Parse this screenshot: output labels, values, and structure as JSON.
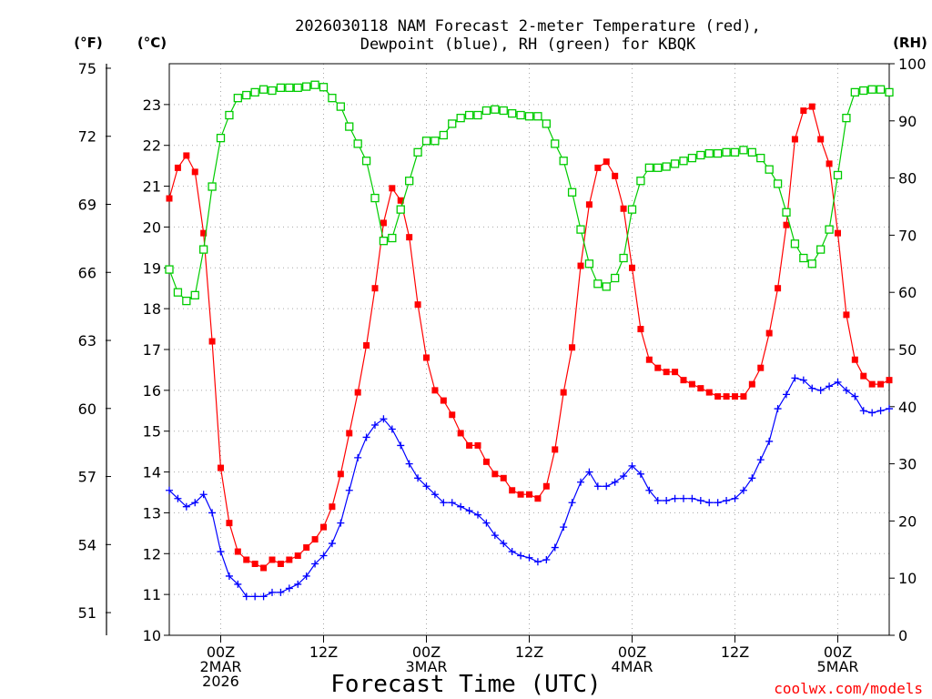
{
  "chart_data": {
    "type": "line",
    "title_line1": "2026030118 NAM Forecast 2-meter Temperature (red),",
    "title_line2": "Dewpoint (blue), RH (green) for KBQK",
    "xlabel": "Forecast Time (UTC)",
    "credit": "coolwx.com/models",
    "units": {
      "fahrenheit": "(°F)",
      "celsius": "(°C)",
      "rh": "(RH)"
    },
    "x_range_hours": [
      18,
      102
    ],
    "celsius_axis": {
      "range": [
        10,
        24
      ],
      "ticks": [
        10,
        11,
        12,
        13,
        14,
        15,
        16,
        17,
        18,
        19,
        20,
        21,
        22,
        23
      ]
    },
    "fahrenheit_axis": {
      "range": [
        50,
        75.2
      ],
      "ticks": [
        51,
        54,
        57,
        60,
        63,
        66,
        69,
        72,
        75
      ]
    },
    "rh_axis": {
      "range": [
        0,
        100
      ],
      "ticks": [
        0,
        10,
        20,
        30,
        40,
        50,
        60,
        70,
        80,
        90,
        100
      ]
    },
    "x_ticks": [
      {
        "hour": 24,
        "lines": [
          "00Z",
          "2MAR",
          "2026"
        ]
      },
      {
        "hour": 36,
        "lines": [
          "12Z"
        ]
      },
      {
        "hour": 48,
        "lines": [
          "00Z",
          "3MAR"
        ]
      },
      {
        "hour": 60,
        "lines": [
          "12Z"
        ]
      },
      {
        "hour": 72,
        "lines": [
          "00Z",
          "4MAR"
        ]
      },
      {
        "hour": 84,
        "lines": [
          "12Z"
        ]
      },
      {
        "hour": 96,
        "lines": [
          "00Z",
          "5MAR"
        ]
      }
    ],
    "grid": true,
    "colors": {
      "temperature": "#ff0000",
      "dewpoint": "#0000ff",
      "rh": "#00cc00",
      "credit": "#ff0000"
    },
    "series": [
      {
        "key": "temperature",
        "axis": "celsius",
        "marker": "filled-square",
        "x": [
          18,
          19,
          20,
          21,
          22,
          23,
          24,
          25,
          26,
          27,
          28,
          29,
          30,
          31,
          32,
          33,
          34,
          35,
          36,
          37,
          38,
          39,
          40,
          41,
          42,
          43,
          44,
          45,
          46,
          47,
          48,
          49,
          50,
          51,
          52,
          53,
          54,
          55,
          56,
          57,
          58,
          59,
          60,
          61,
          62,
          63,
          64,
          65,
          66,
          67,
          68,
          69,
          70,
          71,
          72,
          73,
          74,
          75,
          76,
          77,
          78,
          79,
          80,
          81,
          82,
          83,
          84,
          85,
          86,
          87,
          88,
          89,
          90,
          91,
          92,
          93,
          94,
          95,
          96,
          97,
          98,
          99,
          100,
          101,
          102
        ],
        "values": [
          20.7,
          21.45,
          21.75,
          21.35,
          19.85,
          17.2,
          14.1,
          12.75,
          12.05,
          11.85,
          11.75,
          11.65,
          11.85,
          11.75,
          11.85,
          11.95,
          12.15,
          12.35,
          12.65,
          13.15,
          13.95,
          14.95,
          15.95,
          17.1,
          18.5,
          20.1,
          20.95,
          20.65,
          19.75,
          18.1,
          16.8,
          16.0,
          15.75,
          15.4,
          14.95,
          14.65,
          14.65,
          14.25,
          13.95,
          13.85,
          13.55,
          13.45,
          13.45,
          13.35,
          13.65,
          14.55,
          15.95,
          17.05,
          19.05,
          20.55,
          21.45,
          21.6,
          21.25,
          20.45,
          19.0,
          17.5,
          16.75,
          16.55,
          16.45,
          16.45,
          16.25,
          16.15,
          16.05,
          15.95,
          15.85,
          15.85,
          15.85,
          15.85,
          16.15,
          16.55,
          17.4,
          18.5,
          20.05,
          22.15,
          22.85,
          22.95,
          22.15,
          21.55,
          19.85,
          17.85,
          16.75,
          16.35,
          16.15,
          16.15,
          16.25
        ]
      },
      {
        "key": "dewpoint",
        "axis": "celsius",
        "marker": "plus",
        "x": [
          18,
          19,
          20,
          21,
          22,
          23,
          24,
          25,
          26,
          27,
          28,
          29,
          30,
          31,
          32,
          33,
          34,
          35,
          36,
          37,
          38,
          39,
          40,
          41,
          42,
          43,
          44,
          45,
          46,
          47,
          48,
          49,
          50,
          51,
          52,
          53,
          54,
          55,
          56,
          57,
          58,
          59,
          60,
          61,
          62,
          63,
          64,
          65,
          66,
          67,
          68,
          69,
          70,
          71,
          72,
          73,
          74,
          75,
          76,
          77,
          78,
          79,
          80,
          81,
          82,
          83,
          84,
          85,
          86,
          87,
          88,
          89,
          90,
          91,
          92,
          93,
          94,
          95,
          96,
          97,
          98,
          99,
          100,
          101,
          102
        ],
        "values": [
          13.55,
          13.35,
          13.15,
          13.25,
          13.45,
          13.0,
          12.05,
          11.45,
          11.25,
          10.95,
          10.95,
          10.95,
          11.05,
          11.05,
          11.15,
          11.25,
          11.45,
          11.75,
          11.95,
          12.25,
          12.75,
          13.55,
          14.35,
          14.85,
          15.15,
          15.3,
          15.05,
          14.65,
          14.2,
          13.85,
          13.65,
          13.45,
          13.25,
          13.25,
          13.15,
          13.05,
          12.95,
          12.75,
          12.45,
          12.25,
          12.05,
          11.95,
          11.9,
          11.8,
          11.85,
          12.15,
          12.65,
          13.25,
          13.75,
          14.0,
          13.65,
          13.65,
          13.75,
          13.9,
          14.15,
          13.95,
          13.55,
          13.3,
          13.3,
          13.35,
          13.35,
          13.35,
          13.3,
          13.25,
          13.25,
          13.3,
          13.35,
          13.55,
          13.85,
          14.3,
          14.75,
          15.55,
          15.9,
          16.3,
          16.25,
          16.05,
          16.0,
          16.1,
          16.2,
          16.0,
          15.85,
          15.5,
          15.45,
          15.5,
          15.55
        ]
      },
      {
        "key": "rh",
        "axis": "rh",
        "marker": "open-square",
        "x": [
          18,
          19,
          20,
          21,
          22,
          23,
          24,
          25,
          26,
          27,
          28,
          29,
          30,
          31,
          32,
          33,
          34,
          35,
          36,
          37,
          38,
          39,
          40,
          41,
          42,
          43,
          44,
          45,
          46,
          47,
          48,
          49,
          50,
          51,
          52,
          53,
          54,
          55,
          56,
          57,
          58,
          59,
          60,
          61,
          62,
          63,
          64,
          65,
          66,
          67,
          68,
          69,
          70,
          71,
          72,
          73,
          74,
          75,
          76,
          77,
          78,
          79,
          80,
          81,
          82,
          83,
          84,
          85,
          86,
          87,
          88,
          89,
          90,
          91,
          92,
          93,
          94,
          95,
          96,
          97,
          98,
          99,
          100,
          101,
          102
        ],
        "values": [
          64,
          60,
          58.5,
          59.5,
          67.5,
          78.5,
          87,
          91,
          94,
          94.5,
          95,
          95.5,
          95.3,
          95.8,
          95.8,
          95.8,
          96,
          96.3,
          95.9,
          94,
          92.5,
          89,
          86,
          83,
          76.5,
          69,
          69.5,
          74.5,
          79.5,
          84.5,
          86.5,
          86.5,
          87.5,
          89.5,
          90.5,
          91,
          91,
          91.8,
          92,
          91.8,
          91.3,
          91,
          90.8,
          90.8,
          89.5,
          86,
          83,
          77.5,
          71,
          65,
          61.5,
          61,
          62.5,
          66,
          74.5,
          79.5,
          81.8,
          81.8,
          82,
          82.5,
          83,
          83.5,
          84,
          84.3,
          84.3,
          84.5,
          84.5,
          84.9,
          84.5,
          83.5,
          81.5,
          79,
          74,
          68.5,
          66,
          65,
          67.5,
          71,
          80.5,
          90.5,
          95,
          95.3,
          95.5,
          95.5,
          95
        ]
      }
    ]
  }
}
